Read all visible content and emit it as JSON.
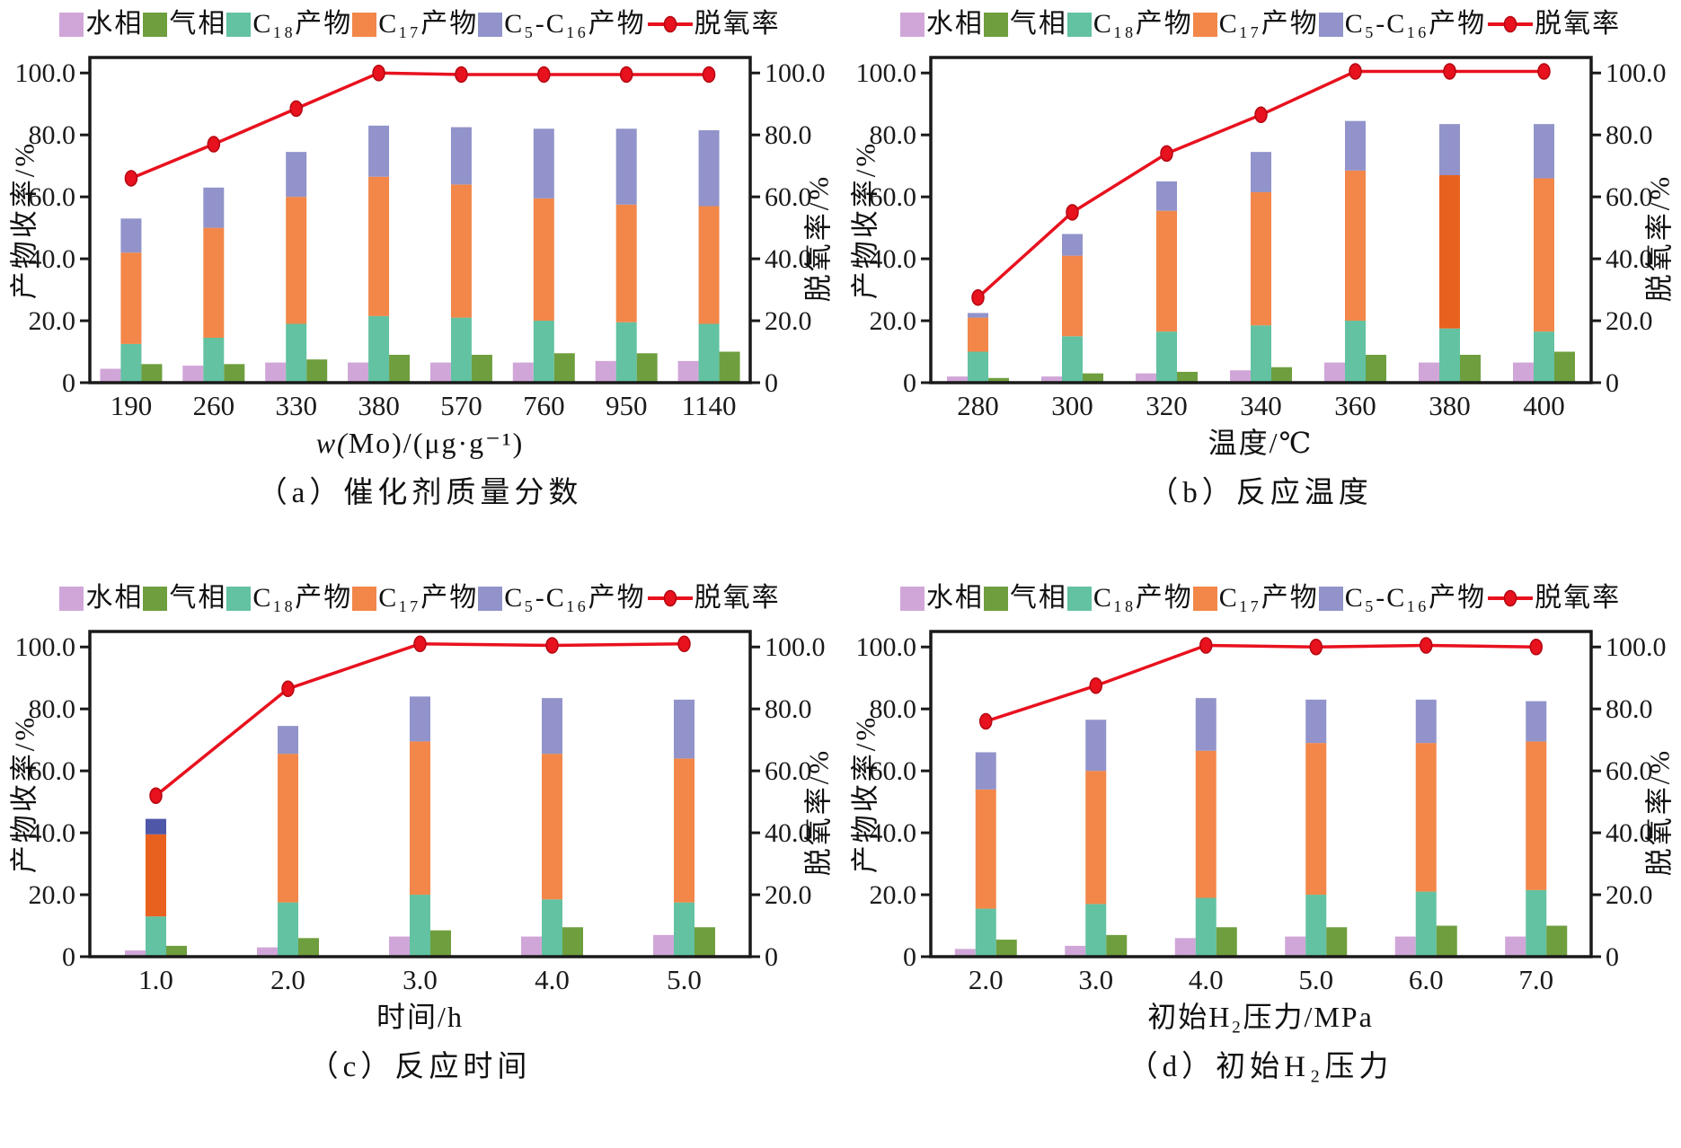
{
  "page": {
    "background": "#ffffff"
  },
  "colors": {
    "water": "#d0a6d8",
    "gas": "#6f9e3e",
    "c18": "#62c2a2",
    "c17": "#f28749",
    "c5c16": "#9193ca",
    "c17_dark": "#e9611e",
    "c5c16_dark": "#4f57a8",
    "line": "#e8111e",
    "line_marker_stroke": "#b30711",
    "axis": "#1a1a1a"
  },
  "legend": {
    "items": [
      {
        "key": "water",
        "label": "水相",
        "type": "box"
      },
      {
        "key": "gas",
        "label": "气相",
        "type": "box"
      },
      {
        "key": "c18",
        "label": "C₁₈产物",
        "type": "box"
      },
      {
        "key": "c17",
        "label": "C₁₇产物",
        "type": "box"
      },
      {
        "key": "c5c16",
        "label": "C₅-C₁₆产物",
        "type": "box"
      },
      {
        "key": "line",
        "label": "脱氧率",
        "type": "line"
      }
    ]
  },
  "axes": {
    "left_title": "产物收率/%",
    "right_title": "脱氧率/%",
    "ylim": [
      0,
      105
    ],
    "ticks": [
      {
        "v": 0,
        "label": "0"
      },
      {
        "v": 20,
        "label": "20.0"
      },
      {
        "v": 40,
        "label": "40.0"
      },
      {
        "v": 60,
        "label": "60.0"
      },
      {
        "v": 80,
        "label": "80.0"
      },
      {
        "v": 100,
        "label": "100.0"
      }
    ],
    "grid": false
  },
  "chart_data": [
    {
      "id": "a",
      "type": "bar+line",
      "caption": "（a）催化剂质量分数",
      "xlabel": "w(Mo)/(μg·g⁻¹)",
      "categories": [
        "190",
        "260",
        "330",
        "380",
        "570",
        "760",
        "950",
        "1140"
      ],
      "series": [
        {
          "key": "water",
          "name": "水相",
          "values": [
            4.5,
            5.5,
            6.5,
            6.5,
            6.5,
            6.5,
            7,
            7
          ]
        },
        {
          "key": "gas",
          "name": "气相",
          "values": [
            6,
            6,
            7.5,
            9,
            9,
            9.5,
            9.5,
            10
          ]
        },
        {
          "key": "c18",
          "name": "C₁₈产物",
          "values": [
            12.5,
            14.5,
            19,
            21.5,
            21,
            20,
            19.5,
            19
          ]
        },
        {
          "key": "c17",
          "name": "C₁₇产物",
          "values": [
            29.5,
            35.5,
            41,
            45,
            43,
            39.5,
            38,
            38
          ]
        },
        {
          "key": "c5c16",
          "name": "C₅-C₁₆产物",
          "values": [
            11,
            13,
            14.5,
            16.5,
            18.5,
            22.5,
            24.5,
            24.5
          ]
        }
      ],
      "line": {
        "name": "脱氧率",
        "values": [
          66,
          77,
          88.5,
          100,
          99.5,
          99.5,
          99.5,
          99.5
        ]
      },
      "segment_color_overrides": {}
    },
    {
      "id": "b",
      "type": "bar+line",
      "caption": "（b）反应温度",
      "xlabel": "温度/℃",
      "categories": [
        "280",
        "300",
        "320",
        "340",
        "360",
        "380",
        "400"
      ],
      "series": [
        {
          "key": "water",
          "name": "水相",
          "values": [
            2,
            2,
            3,
            4,
            6.5,
            6.5,
            6.5
          ]
        },
        {
          "key": "gas",
          "name": "气相",
          "values": [
            1.5,
            3,
            3.5,
            5,
            9,
            9,
            10
          ]
        },
        {
          "key": "c18",
          "name": "C₁₈产物",
          "values": [
            10,
            15,
            16.5,
            18.5,
            20,
            17.5,
            16.5
          ]
        },
        {
          "key": "c17",
          "name": "C₁₇产物",
          "values": [
            11,
            26,
            39,
            43,
            48.5,
            49.5,
            49.5
          ]
        },
        {
          "key": "c5c16",
          "name": "C₅-C₁₆产物",
          "values": [
            1.5,
            7,
            9.5,
            13,
            16,
            16.5,
            17.5
          ]
        }
      ],
      "line": {
        "name": "脱氧率",
        "values": [
          27.5,
          55,
          74,
          86.5,
          100.5,
          100.5,
          100.5
        ]
      },
      "segment_color_overrides": {
        "5": {
          "c17": "c17_dark"
        }
      }
    },
    {
      "id": "c",
      "type": "bar+line",
      "caption": "（c）反应时间",
      "xlabel": "时间/h",
      "categories": [
        "1.0",
        "2.0",
        "3.0",
        "4.0",
        "5.0"
      ],
      "series": [
        {
          "key": "water",
          "name": "水相",
          "values": [
            2,
            3,
            6.5,
            6.5,
            7
          ]
        },
        {
          "key": "gas",
          "name": "气相",
          "values": [
            3.5,
            6,
            8.5,
            9.5,
            9.5
          ]
        },
        {
          "key": "c18",
          "name": "C₁₈产物",
          "values": [
            13,
            17.5,
            20,
            18.5,
            17.5
          ]
        },
        {
          "key": "c17",
          "name": "C₁₇产物",
          "values": [
            26.5,
            48,
            49.5,
            47,
            46.5
          ]
        },
        {
          "key": "c5c16",
          "name": "C₅-C₁₆产物",
          "values": [
            5,
            9,
            14.5,
            18,
            19
          ]
        }
      ],
      "line": {
        "name": "脱氧率",
        "values": [
          52,
          86.5,
          101,
          100.5,
          101
        ]
      },
      "segment_color_overrides": {
        "0": {
          "c17": "c17_dark",
          "c5c16": "c5c16_dark"
        }
      }
    },
    {
      "id": "d",
      "type": "bar+line",
      "caption": "（d）初始H₂压力",
      "xlabel": "初始H₂压力/MPa",
      "categories": [
        "2.0",
        "3.0",
        "4.0",
        "5.0",
        "6.0",
        "7.0"
      ],
      "series": [
        {
          "key": "water",
          "name": "水相",
          "values": [
            2.5,
            3.5,
            6,
            6.5,
            6.5,
            6.5
          ]
        },
        {
          "key": "gas",
          "name": "气相",
          "values": [
            5.5,
            7,
            9.5,
            9.5,
            10,
            10
          ]
        },
        {
          "key": "c18",
          "name": "C₁₈产物",
          "values": [
            15.5,
            17,
            19,
            20,
            21,
            21.5
          ]
        },
        {
          "key": "c17",
          "name": "C₁₇产物",
          "values": [
            38.5,
            43,
            47.5,
            49,
            48,
            48
          ]
        },
        {
          "key": "c5c16",
          "name": "C₅-C₁₆产物",
          "values": [
            12,
            16.5,
            17,
            14,
            14,
            13
          ]
        }
      ],
      "line": {
        "name": "脱氧率",
        "values": [
          76,
          87.5,
          100.5,
          100,
          100.5,
          100
        ]
      },
      "segment_color_overrides": {}
    }
  ]
}
